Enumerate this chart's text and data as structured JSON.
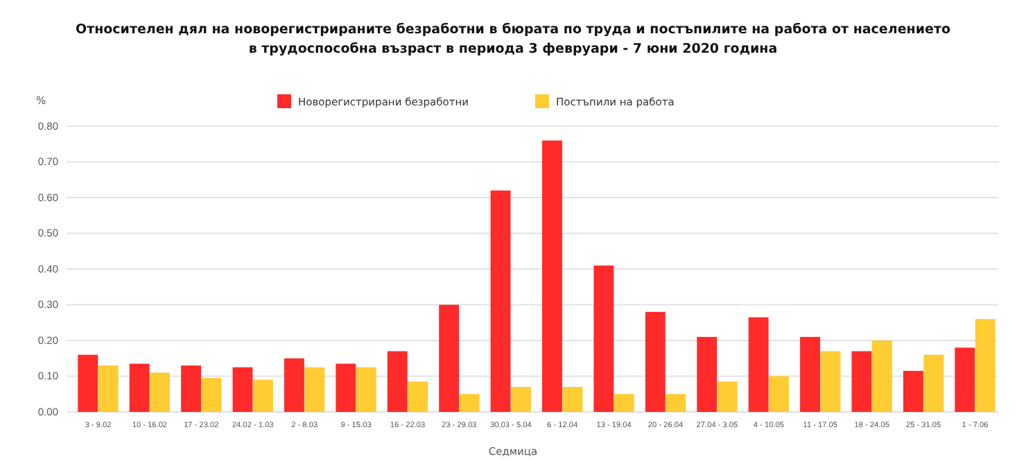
{
  "chart_data": {
    "type": "bar",
    "title": "Относителен дял на новорегистрираните безработни в бюрата по труда и постъпилите на работа от населението\nв трудоспособна възраст в периода 3 февруари - 7 юни 2020 година",
    "ylabel": "%",
    "xlabel": "Седмица",
    "categories": [
      "3 - 9.02",
      "10 - 16.02",
      "17 - 23.02",
      "24.02 - 1.03",
      "2 - 8.03",
      "9 - 15.03",
      "16 - 22.03",
      "23 - 29.03",
      "30.03 - 5.04",
      "6 - 12.04",
      "13 - 19.04",
      "20 - 26.04",
      "27.04 - 3.05",
      "4 - 10.05",
      "11 - 17.05",
      "18 - 24.05",
      "25 - 31.05",
      "1 - 7.06"
    ],
    "series": [
      {
        "name": "Новорегистрирани безработни",
        "color": "#ff2a2a",
        "values": [
          0.16,
          0.135,
          0.13,
          0.125,
          0.15,
          0.135,
          0.17,
          0.3,
          0.62,
          0.76,
          0.41,
          0.28,
          0.21,
          0.265,
          0.21,
          0.17,
          0.115,
          0.18
        ]
      },
      {
        "name": "Постъпили на работа",
        "color": "#ffcc33",
        "values": [
          0.13,
          0.11,
          0.095,
          0.09,
          0.125,
          0.125,
          0.085,
          0.05,
          0.07,
          0.07,
          0.05,
          0.05,
          0.085,
          0.1,
          0.17,
          0.2,
          0.16,
          0.26
        ]
      }
    ],
    "ylim": [
      0,
      0.8
    ],
    "yticks": [
      {
        "value": 0,
        "label": "0.00"
      },
      {
        "value": 0.1,
        "label": "0.10"
      },
      {
        "value": 0.2,
        "label": "0.20"
      },
      {
        "value": 0.3,
        "label": "0.30"
      },
      {
        "value": 0.4,
        "label": "0.40"
      },
      {
        "value": 0.5,
        "label": "0.50"
      },
      {
        "value": 0.6,
        "label": "0.60"
      },
      {
        "value": 0.7,
        "label": "0.70"
      },
      {
        "value": 0.8,
        "label": "0.80"
      }
    ],
    "grid": "y",
    "legend": "top"
  }
}
